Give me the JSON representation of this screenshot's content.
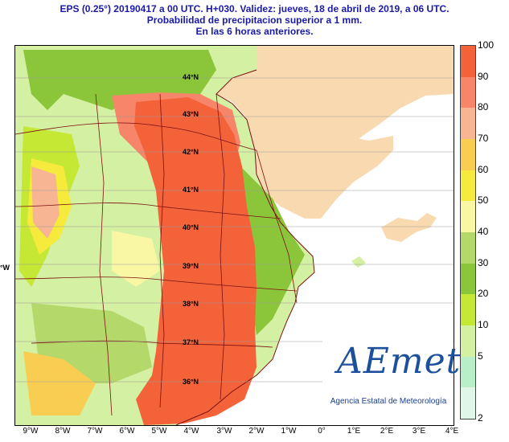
{
  "header": {
    "line1": "EPS (0.25°) 20190417 a 00 UTC.  H+030. Validez: jueves, 18 de abril de 2019,  a  06 UTC.",
    "line2": "Probabilidad de precipitacion superior a 1 mm.",
    "line3": "En las 6 horas anteriores."
  },
  "legend": {
    "labels": [
      "100",
      "90",
      "80",
      "70",
      "60",
      "50",
      "40",
      "30",
      "20",
      "10",
      "5",
      "2"
    ],
    "colors": [
      "#f4623a",
      "#f7856a",
      "#f8b594",
      "#f9cd52",
      "#f6ea3c",
      "#f9f7a4",
      "#b4d86a",
      "#8bc63a",
      "#c4e834",
      "#d4f0a2",
      "#b8eec8",
      "#e0f7e8"
    ]
  },
  "axes": {
    "lon_labels": [
      "9°W",
      "8°W",
      "7°W",
      "6°W",
      "5°W",
      "4°W",
      "3°W",
      "2°W",
      "1°W",
      "0°",
      "1°E",
      "2°E",
      "3°E",
      "4°E"
    ],
    "lat_labels": [
      "44°N",
      "43°N",
      "42°N",
      "41°N",
      "40°N",
      "39°N",
      "38°N",
      "37°N",
      "36°N"
    ],
    "left_edge_label": "°W"
  },
  "logo": {
    "mark": "AEmet",
    "subtitle": "Agencia Estatal de Meteorología"
  },
  "colors": {
    "land_outside": "#f9d9b0",
    "sea": "#ffffff",
    "border": "#7a1010",
    "title": "#1a1aa6"
  }
}
